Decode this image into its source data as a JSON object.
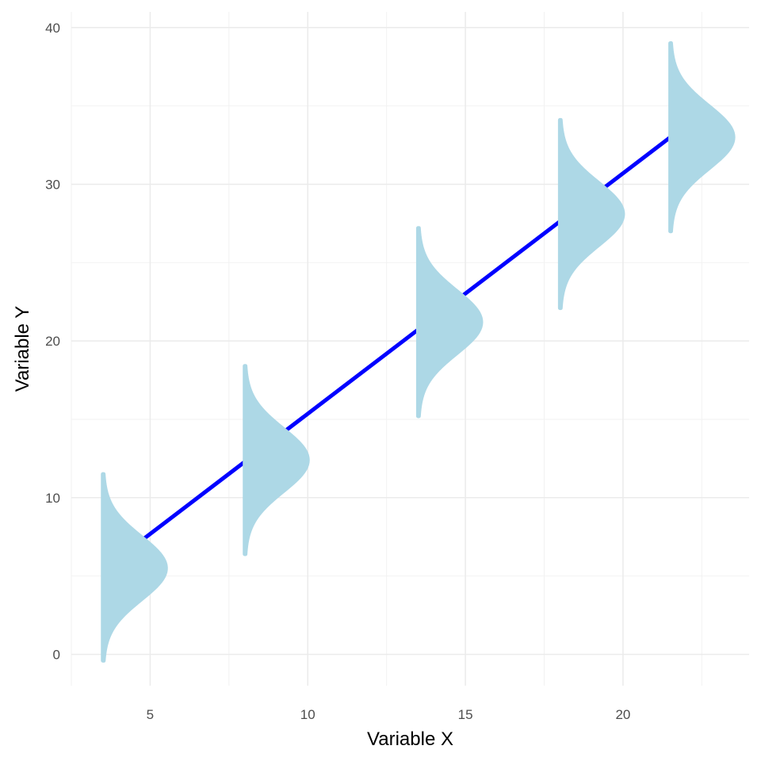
{
  "chart_data": {
    "type": "line",
    "title": "",
    "xlabel": "Variable X",
    "ylabel": "Variable Y",
    "xlim": [
      2.5,
      24
    ],
    "ylim": [
      -2,
      41
    ],
    "x_ticks": [
      5,
      10,
      15,
      20
    ],
    "x_tick_labels": [
      "5",
      "10",
      "15",
      "20"
    ],
    "y_ticks": [
      0,
      10,
      20,
      30,
      40
    ],
    "y_tick_labels": [
      "0",
      "10",
      "20",
      "30",
      "40"
    ],
    "x_minor_ticks": [
      2.5,
      7.5,
      12.5,
      17.5,
      22.5
    ],
    "y_minor_ticks": [
      5,
      15,
      25,
      35
    ],
    "grid": true,
    "line": {
      "x": [
        4.75,
        21.5
      ],
      "y": [
        7.3,
        33.0
      ],
      "color": "#0000ff"
    },
    "densities": [
      {
        "x": 3.5,
        "mean": 5.5,
        "sd": 2.0,
        "y_min": -0.4,
        "y_max": 11.5
      },
      {
        "x": 8.0,
        "mean": 12.4,
        "sd": 2.0,
        "y_min": 6.4,
        "y_max": 18.4
      },
      {
        "x": 13.5,
        "mean": 21.2,
        "sd": 2.0,
        "y_min": 15.2,
        "y_max": 27.2
      },
      {
        "x": 18.0,
        "mean": 28.1,
        "sd": 2.0,
        "y_min": 22.1,
        "y_max": 34.1
      },
      {
        "x": 21.5,
        "mean": 33.0,
        "sd": 2.0,
        "y_min": 27.0,
        "y_max": 39.0
      }
    ],
    "density_width_x": 2.0,
    "density_color": "#add8e6"
  }
}
